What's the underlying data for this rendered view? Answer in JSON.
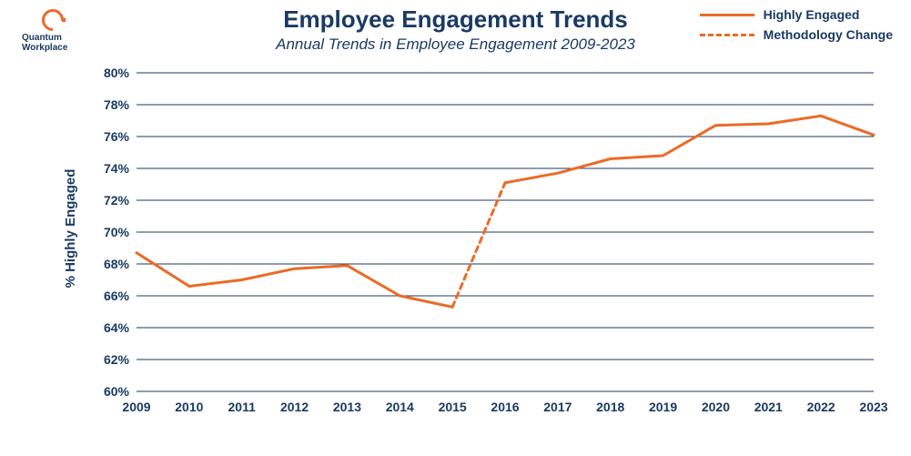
{
  "logo": {
    "line1": "Quantum",
    "line2": "Workplace",
    "brand_color": "#ec6a26"
  },
  "chart": {
    "type": "line",
    "title": "Employee Engagement Trends",
    "subtitle": "Annual Trends in Employee Engagement 2009-2023",
    "yaxis_label": "% Highly Engaged",
    "text_color": "#1a3a63",
    "background_color": "#ffffff",
    "grid_color": "#1a3a63",
    "title_fontsize": 26,
    "subtitle_fontsize": 17,
    "label_fontsize": 15,
    "tick_fontsize": 14,
    "ylim": [
      60,
      80
    ],
    "ytick_step": 2,
    "ytick_suffix": "%",
    "xticks": [
      2009,
      2010,
      2011,
      2012,
      2013,
      2014,
      2015,
      2016,
      2017,
      2018,
      2019,
      2020,
      2021,
      2022,
      2023
    ],
    "series": [
      {
        "name": "Highly Engaged",
        "color": "#ec6a26",
        "line_width": 3,
        "style": "solid",
        "segments": [
          {
            "style": "solid",
            "x": [
              2009,
              2010,
              2011,
              2012,
              2013,
              2014,
              2015
            ],
            "y": [
              68.7,
              66.6,
              67.0,
              67.7,
              67.9,
              66.0,
              65.3
            ]
          },
          {
            "style": "dashed",
            "x": [
              2015,
              2016
            ],
            "y": [
              65.3,
              73.1
            ]
          },
          {
            "style": "solid",
            "x": [
              2016,
              2017,
              2018,
              2019,
              2020,
              2021,
              2022,
              2023
            ],
            "y": [
              73.1,
              73.7,
              74.6,
              74.8,
              76.7,
              76.8,
              77.3,
              76.1
            ]
          }
        ]
      }
    ],
    "legend": {
      "position": "top-right",
      "items": [
        {
          "label": "Highly Engaged",
          "style": "solid",
          "color": "#ec6a26"
        },
        {
          "label": "Methodology Change",
          "style": "dashed",
          "color": "#ec6a26"
        }
      ]
    }
  }
}
